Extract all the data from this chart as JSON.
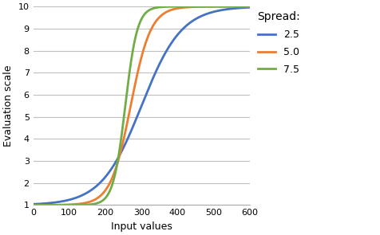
{
  "title": "",
  "xlabel": "Input values",
  "ylabel": "Evaluation scale",
  "xlim": [
    0,
    600
  ],
  "ylim": [
    1,
    10
  ],
  "xticks": [
    0,
    100,
    200,
    300,
    400,
    500,
    600
  ],
  "yticks": [
    1,
    2,
    3,
    4,
    5,
    6,
    7,
    8,
    9,
    10
  ],
  "curves": [
    {
      "spread": 2.5,
      "color": "#4472C4",
      "label": "2.5",
      "k": 0.018
    },
    {
      "spread": 5.0,
      "color": "#ED7D31",
      "label": "5.0",
      "k": 0.036
    },
    {
      "spread": 7.5,
      "color": "#70AD47",
      "label": "7.5",
      "k": 0.06
    }
  ],
  "centers": [
    300,
    270,
    255
  ],
  "legend_title": "Spread:",
  "min_val": 1,
  "max_val": 10,
  "background_color": "#ffffff",
  "grid_color": "#BFBFBF"
}
